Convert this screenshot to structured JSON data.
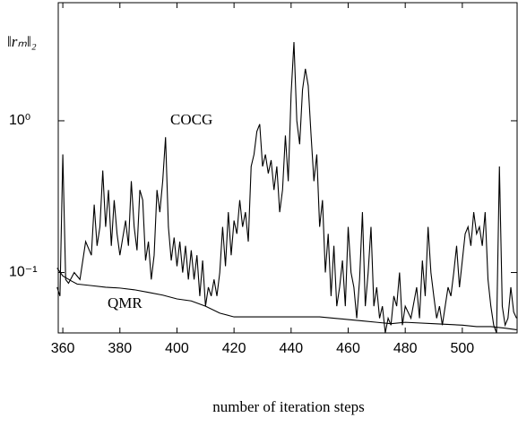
{
  "chart_data": {
    "type": "line",
    "ylabel": "‖rₘ‖₂",
    "xlabel": "number of iteration steps",
    "xlim": [
      358.4,
      519.2
    ],
    "xticks": [
      360,
      380,
      400,
      420,
      440,
      460,
      480,
      500
    ],
    "ylim": [
      0.04,
      6
    ],
    "log_y": true,
    "yticks": [
      {
        "value": 1,
        "label": "10⁰"
      },
      {
        "value": 0.1,
        "label": "10⁻¹"
      }
    ],
    "series": [
      {
        "name": "COCG",
        "color": "#000000",
        "x": [
          358,
          359,
          360,
          361,
          362,
          364,
          366,
          368,
          370,
          371,
          372,
          373,
          374,
          375,
          376,
          377,
          378,
          379,
          380,
          382,
          383,
          384,
          385,
          386,
          387,
          388,
          389,
          390,
          391,
          392,
          393,
          394,
          395,
          396,
          397,
          398,
          399,
          400,
          401,
          402,
          403,
          404,
          405,
          406,
          407,
          408,
          409,
          410,
          411,
          412,
          413,
          414,
          415,
          416,
          417,
          418,
          419,
          420,
          421,
          422,
          423,
          424,
          425,
          426,
          427,
          428,
          429,
          430,
          431,
          432,
          433,
          434,
          435,
          436,
          437,
          438,
          439,
          440,
          441,
          442,
          443,
          444,
          445,
          446,
          447,
          448,
          449,
          450,
          451,
          452,
          453,
          454,
          455,
          456,
          457,
          458,
          459,
          460,
          461,
          462,
          463,
          464,
          465,
          466,
          467,
          468,
          469,
          470,
          471,
          472,
          473,
          474,
          475,
          476,
          477,
          478,
          479,
          480,
          482,
          484,
          485,
          486,
          487,
          488,
          489,
          490,
          491,
          492,
          493,
          494,
          495,
          496,
          497,
          498,
          499,
          500,
          501,
          502,
          503,
          504,
          505,
          506,
          507,
          508,
          509,
          510,
          511,
          512,
          513,
          514,
          515,
          516,
          517,
          518,
          519
        ],
        "values": [
          0.08,
          0.07,
          0.6,
          0.09,
          0.085,
          0.1,
          0.09,
          0.16,
          0.13,
          0.28,
          0.15,
          0.2,
          0.47,
          0.2,
          0.35,
          0.15,
          0.3,
          0.18,
          0.13,
          0.22,
          0.15,
          0.4,
          0.2,
          0.14,
          0.35,
          0.3,
          0.12,
          0.16,
          0.09,
          0.13,
          0.35,
          0.25,
          0.4,
          0.78,
          0.2,
          0.12,
          0.17,
          0.11,
          0.16,
          0.1,
          0.15,
          0.09,
          0.14,
          0.09,
          0.13,
          0.07,
          0.12,
          0.06,
          0.08,
          0.07,
          0.09,
          0.07,
          0.1,
          0.2,
          0.11,
          0.25,
          0.13,
          0.22,
          0.18,
          0.3,
          0.2,
          0.25,
          0.16,
          0.5,
          0.6,
          0.85,
          0.95,
          0.5,
          0.6,
          0.45,
          0.55,
          0.35,
          0.5,
          0.25,
          0.35,
          0.8,
          0.4,
          1.5,
          3.3,
          1.0,
          0.7,
          1.6,
          2.2,
          1.7,
          0.8,
          0.4,
          0.6,
          0.2,
          0.3,
          0.1,
          0.18,
          0.07,
          0.15,
          0.06,
          0.08,
          0.12,
          0.06,
          0.2,
          0.1,
          0.08,
          0.05,
          0.09,
          0.25,
          0.06,
          0.1,
          0.2,
          0.06,
          0.08,
          0.05,
          0.06,
          0.04,
          0.05,
          0.045,
          0.07,
          0.06,
          0.1,
          0.045,
          0.06,
          0.05,
          0.08,
          0.05,
          0.12,
          0.07,
          0.2,
          0.1,
          0.07,
          0.05,
          0.06,
          0.045,
          0.06,
          0.08,
          0.07,
          0.1,
          0.15,
          0.08,
          0.12,
          0.18,
          0.2,
          0.15,
          0.25,
          0.18,
          0.2,
          0.15,
          0.25,
          0.09,
          0.06,
          0.045,
          0.04,
          0.5,
          0.06,
          0.045,
          0.05,
          0.08,
          0.055,
          0.05
        ]
      },
      {
        "name": "QMR",
        "color": "#000000",
        "x": [
          358,
          360,
          363,
          365,
          370,
          375,
          380,
          385,
          390,
          395,
          400,
          405,
          410,
          415,
          420,
          430,
          440,
          450,
          455,
          460,
          465,
          470,
          475,
          480,
          490,
          500,
          505,
          510,
          515,
          519
        ],
        "values": [
          0.107,
          0.095,
          0.088,
          0.084,
          0.082,
          0.08,
          0.079,
          0.077,
          0.074,
          0.071,
          0.067,
          0.065,
          0.06,
          0.054,
          0.051,
          0.051,
          0.051,
          0.051,
          0.05,
          0.049,
          0.048,
          0.047,
          0.046,
          0.047,
          0.046,
          0.045,
          0.044,
          0.044,
          0.043,
          0.042
        ]
      }
    ]
  }
}
